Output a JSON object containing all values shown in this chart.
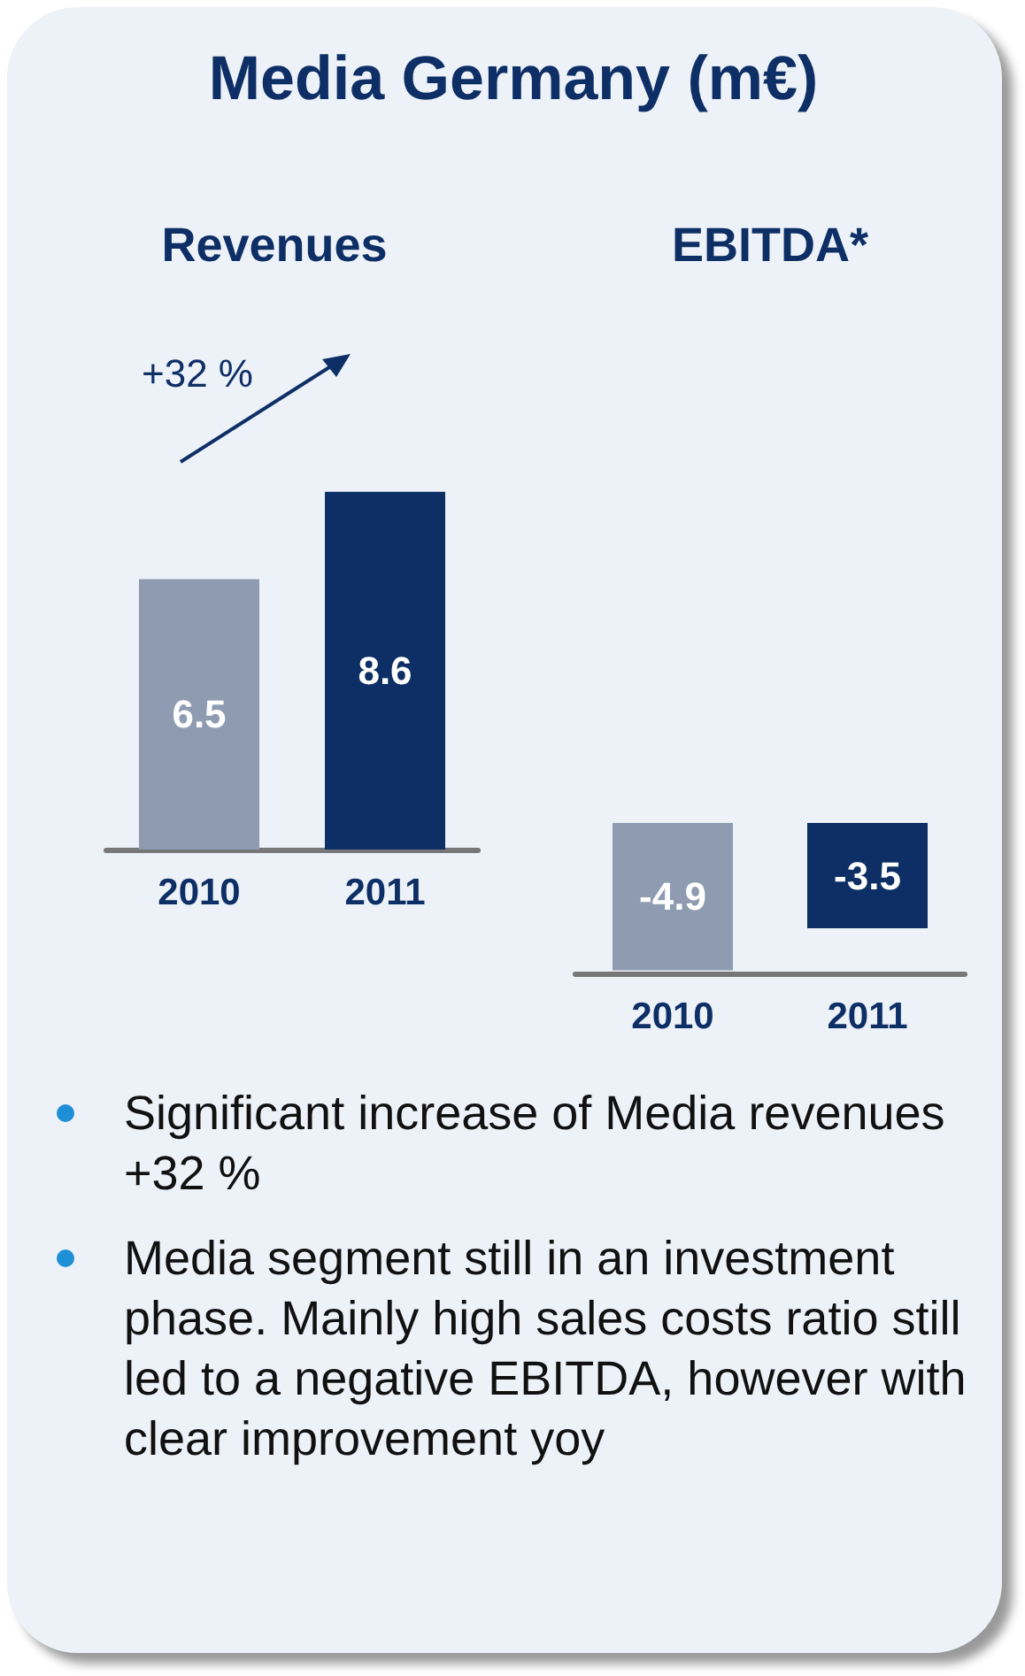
{
  "chart_data": [
    {
      "type": "other",
      "title": "Media Germany (m€)"
    },
    {
      "type": "bar",
      "title": "Revenues",
      "categories": [
        "2010",
        "2011"
      ],
      "values": [
        6.5,
        8.6
      ],
      "colors": [
        "#8f9bb0",
        "#0d2f66"
      ],
      "data_labels": true,
      "annotations": [
        "+32 %"
      ]
    },
    {
      "type": "bar",
      "title": "EBITDA*",
      "categories": [
        "2010",
        "2011"
      ],
      "values": [
        -4.9,
        -3.5
      ],
      "colors": [
        "#8f9bb0",
        "#0d2f66"
      ],
      "data_labels": true
    },
    {
      "type": "other",
      "annotations": [
        "Significant increase of Media revenues +32 %",
        "Media segment still in an investment phase. Mainly high sales costs ratio still led to a negative EBITDA, however with clear improvement yoy"
      ]
    }
  ]
}
